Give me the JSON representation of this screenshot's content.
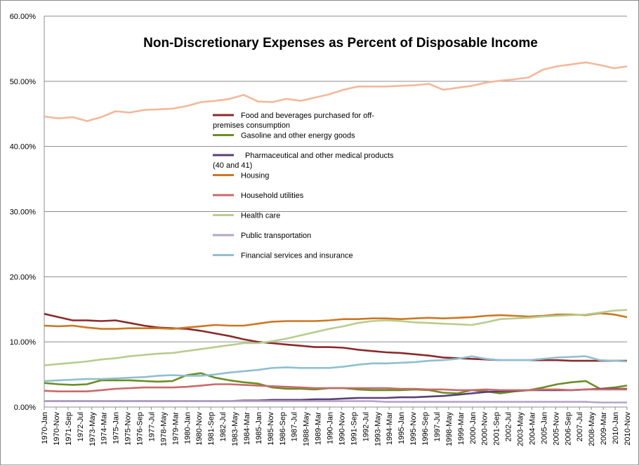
{
  "chart_data": {
    "type": "line",
    "title": "Non-Discretionary Expenses as Percent of Disposable Income",
    "xlabel": "",
    "ylabel": "",
    "ylim": [
      0,
      60
    ],
    "y_ticks": [
      "0.00%",
      "10.00%",
      "20.00%",
      "30.00%",
      "40.00%",
      "50.00%",
      "60.00%"
    ],
    "grid": "horizontal",
    "legend_position": "center-left, inside plot",
    "x_labels": [
      "1970-Jan",
      "1970-Nov",
      "1971-Sep",
      "1972-Jul",
      "1973-May",
      "1974-Mar",
      "1975-Jan",
      "1975-Nov",
      "1976-Sep",
      "1977-Jul",
      "1978-May",
      "1979-Mar",
      "1980-Jan",
      "1980-Nov",
      "1981-Sep",
      "1982-Jul",
      "1983-May",
      "1984-Mar",
      "1985-Jan",
      "1985-Nov",
      "1986-Sep",
      "1987-Jul",
      "1988-May",
      "1989-Mar",
      "1990-Jan",
      "1990-Nov",
      "1991-Sep",
      "1992-Jul",
      "1993-May",
      "1994-Mar",
      "1995-Jan",
      "1995-Nov",
      "1996-Sep",
      "1997-Jul",
      "1998-May",
      "1999-Mar",
      "2000-Jan",
      "2000-Nov",
      "2001-Sep",
      "2002-Jul",
      "2003-May",
      "2004-Mar",
      "2005-Jan",
      "2005-Nov",
      "2006-Sep",
      "2007-Jul",
      "2008-May",
      "2009-Mar",
      "2010-Jan",
      "2010-Nov"
    ],
    "x": [
      1970.0,
      1971.0,
      1972.0,
      1973.0,
      1974.0,
      1975.0,
      1976.0,
      1977.0,
      1978.0,
      1979.0,
      1980.0,
      1981.0,
      1982.0,
      1983.0,
      1984.0,
      1985.0,
      1986.0,
      1987.0,
      1988.0,
      1989.0,
      1990.0,
      1991.0,
      1992.0,
      1993.0,
      1994.0,
      1995.0,
      1996.0,
      1997.0,
      1998.0,
      1999.0,
      2000.0,
      2001.0,
      2002.0,
      2003.0,
      2004.0,
      2005.0,
      2006.0,
      2007.0,
      2008.0,
      2009.0,
      2010.0,
      2010.9
    ],
    "series": [
      {
        "name": "Food and beverages purchased for off-premises consumption",
        "color": "#8b2a2a",
        "values": [
          14.3,
          13.8,
          13.3,
          13.3,
          13.2,
          13.3,
          12.9,
          12.5,
          12.2,
          12.1,
          12.0,
          11.7,
          11.3,
          10.9,
          10.4,
          10.0,
          9.8,
          9.6,
          9.4,
          9.2,
          9.2,
          9.1,
          8.8,
          8.6,
          8.4,
          8.3,
          8.1,
          7.9,
          7.6,
          7.5,
          7.4,
          7.3,
          7.2,
          7.2,
          7.2,
          7.2,
          7.2,
          7.1,
          7.1,
          7.1,
          7.1,
          7.1
        ]
      },
      {
        "name": "Gasoline and other energy goods",
        "color": "#6b8e23",
        "values": [
          3.7,
          3.5,
          3.4,
          3.5,
          4.1,
          4.1,
          4.1,
          4.0,
          3.9,
          4.0,
          4.9,
          5.2,
          4.5,
          4.1,
          3.8,
          3.6,
          3.0,
          2.8,
          2.8,
          2.7,
          2.9,
          2.9,
          2.7,
          2.6,
          2.6,
          2.6,
          2.7,
          2.6,
          2.2,
          2.1,
          2.6,
          2.4,
          2.1,
          2.4,
          2.6,
          3.0,
          3.5,
          3.8,
          4.0,
          2.8,
          3.0,
          3.3
        ]
      },
      {
        "name": "Pharmaceutical and other medical products (40 and 41)",
        "color": "#5b3f7a",
        "values": [
          0.9,
          0.9,
          0.9,
          0.9,
          0.9,
          0.9,
          0.9,
          0.9,
          0.9,
          0.9,
          0.9,
          0.9,
          0.9,
          0.9,
          1.0,
          1.0,
          1.1,
          1.1,
          1.1,
          1.2,
          1.2,
          1.3,
          1.4,
          1.4,
          1.4,
          1.5,
          1.5,
          1.6,
          1.7,
          1.9,
          2.1,
          2.3,
          2.4,
          2.5,
          2.6,
          2.6,
          2.6,
          2.6,
          2.7,
          2.8,
          2.8,
          2.8
        ]
      },
      {
        "name": "Housing",
        "color": "#cc7722",
        "values": [
          12.5,
          12.4,
          12.5,
          12.2,
          12.0,
          12.0,
          12.1,
          12.1,
          12.1,
          12.0,
          12.2,
          12.4,
          12.6,
          12.5,
          12.5,
          12.8,
          13.1,
          13.2,
          13.2,
          13.2,
          13.3,
          13.5,
          13.5,
          13.6,
          13.6,
          13.5,
          13.6,
          13.7,
          13.6,
          13.7,
          13.8,
          14.0,
          14.1,
          14.0,
          13.9,
          14.0,
          14.2,
          14.2,
          14.1,
          14.4,
          14.2,
          13.8
        ]
      },
      {
        "name": "Household utilities",
        "color": "#c96a6a",
        "values": [
          2.5,
          2.4,
          2.4,
          2.4,
          2.6,
          2.8,
          2.9,
          3.0,
          3.0,
          3.0,
          3.1,
          3.3,
          3.5,
          3.5,
          3.4,
          3.3,
          3.2,
          3.1,
          3.0,
          2.9,
          2.9,
          2.9,
          2.9,
          2.9,
          2.9,
          2.8,
          2.8,
          2.7,
          2.7,
          2.6,
          2.6,
          2.7,
          2.6,
          2.6,
          2.6,
          2.7,
          2.7,
          2.6,
          2.7,
          2.7,
          2.7,
          2.7
        ]
      },
      {
        "name": "Health care",
        "color": "#b8cc8f",
        "values": [
          6.4,
          6.6,
          6.8,
          7.0,
          7.3,
          7.5,
          7.8,
          8.0,
          8.2,
          8.3,
          8.6,
          8.9,
          9.2,
          9.5,
          9.8,
          9.8,
          10.1,
          10.5,
          11.0,
          11.5,
          12.0,
          12.4,
          12.9,
          13.2,
          13.3,
          13.2,
          13.0,
          12.9,
          12.8,
          12.7,
          12.6,
          13.0,
          13.5,
          13.6,
          13.7,
          13.9,
          14.0,
          14.1,
          14.2,
          14.5,
          14.8,
          14.9
        ]
      },
      {
        "name": "Public transportation",
        "color": "#b4a4c8",
        "values": [
          0.9,
          0.9,
          0.9,
          0.9,
          0.9,
          0.9,
          0.9,
          0.9,
          0.9,
          0.9,
          0.9,
          0.9,
          0.9,
          0.9,
          0.9,
          0.9,
          0.9,
          0.9,
          0.9,
          0.9,
          0.9,
          0.9,
          0.9,
          0.9,
          0.8,
          0.8,
          0.8,
          0.8,
          0.8,
          0.8,
          0.8,
          0.8,
          0.8,
          0.8,
          0.8,
          0.8,
          0.8,
          0.8,
          0.8,
          0.7,
          0.7,
          0.7
        ]
      },
      {
        "name": "Financial services and insurance",
        "color": "#8fbfd0",
        "values": [
          4.0,
          4.1,
          4.2,
          4.3,
          4.3,
          4.4,
          4.5,
          4.6,
          4.8,
          4.9,
          4.8,
          4.8,
          5.0,
          5.3,
          5.5,
          5.7,
          6.0,
          6.1,
          6.0,
          6.0,
          6.0,
          6.2,
          6.5,
          6.7,
          6.7,
          6.8,
          6.9,
          7.1,
          7.2,
          7.4,
          7.8,
          7.4,
          7.2,
          7.2,
          7.2,
          7.4,
          7.6,
          7.7,
          7.8,
          7.2,
          7.1,
          7.0
        ]
      },
      {
        "name": "",
        "color": "#f4b89a",
        "values": [
          44.6,
          44.3,
          44.5,
          43.9,
          44.5,
          45.4,
          45.2,
          45.6,
          45.7,
          45.8,
          46.2,
          46.8,
          47.0,
          47.3,
          47.9,
          46.9,
          46.8,
          47.3,
          47.0,
          47.5,
          48.0,
          48.7,
          49.2,
          49.2,
          49.2,
          49.3,
          49.4,
          49.6,
          48.7,
          49.0,
          49.3,
          49.8,
          50.1,
          50.3,
          50.6,
          51.8,
          52.3,
          52.6,
          52.9,
          52.5,
          52.0,
          52.3
        ]
      }
    ]
  }
}
